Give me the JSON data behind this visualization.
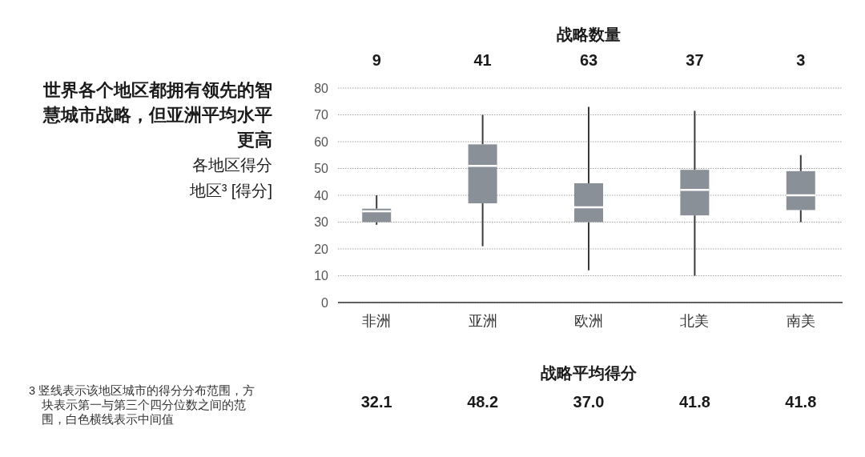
{
  "chart_data": [
    {
      "type": "box",
      "title": "世界各个地区都拥有领先的智慧城市战略，但亚洲平均水平更高",
      "subtitle": "各地区得分",
      "ylabel": "地区³ [得分]",
      "categories": [
        "非洲",
        "亚洲",
        "欧洲",
        "北美",
        "南美"
      ],
      "series": [
        {
          "color": "#8a9098",
          "boxes": [
            {
              "low": 29,
              "q1": 30,
              "median": 34,
              "q3": 35,
              "high": 40
            },
            {
              "low": 21,
              "q1": 37,
              "median": 51,
              "q3": 59,
              "high": 70
            },
            {
              "low": 12,
              "q1": 30,
              "median": 35.5,
              "q3": 44.5,
              "high": 73
            },
            {
              "low": 10,
              "q1": 32.5,
              "median": 42,
              "q3": 49.5,
              "high": 71.5
            },
            {
              "low": 30,
              "q1": 34.5,
              "median": 40,
              "q3": 49,
              "high": 55
            }
          ]
        }
      ],
      "ylim": [
        0,
        80
      ],
      "yticks": [
        0,
        10,
        20,
        30,
        40,
        50,
        60,
        70,
        80
      ],
      "grid": "y",
      "annotations": [
        "3 竖线表示该地区城市的得分分布范围，方块表示第一与第三个四分位数之间的范围，白色横线表示中间值"
      ]
    },
    {
      "type": "other",
      "title": "战略数量",
      "values": [
        9,
        41,
        63,
        37,
        3
      ],
      "data_labels": true
    },
    {
      "type": "other",
      "title": "战略平均得分",
      "values": [
        32.1,
        48.2,
        37.0,
        41.8,
        41.8
      ],
      "value_labels": [
        "32.1",
        "48.2",
        "37.0",
        "41.8",
        "41.8"
      ]
    }
  ]
}
